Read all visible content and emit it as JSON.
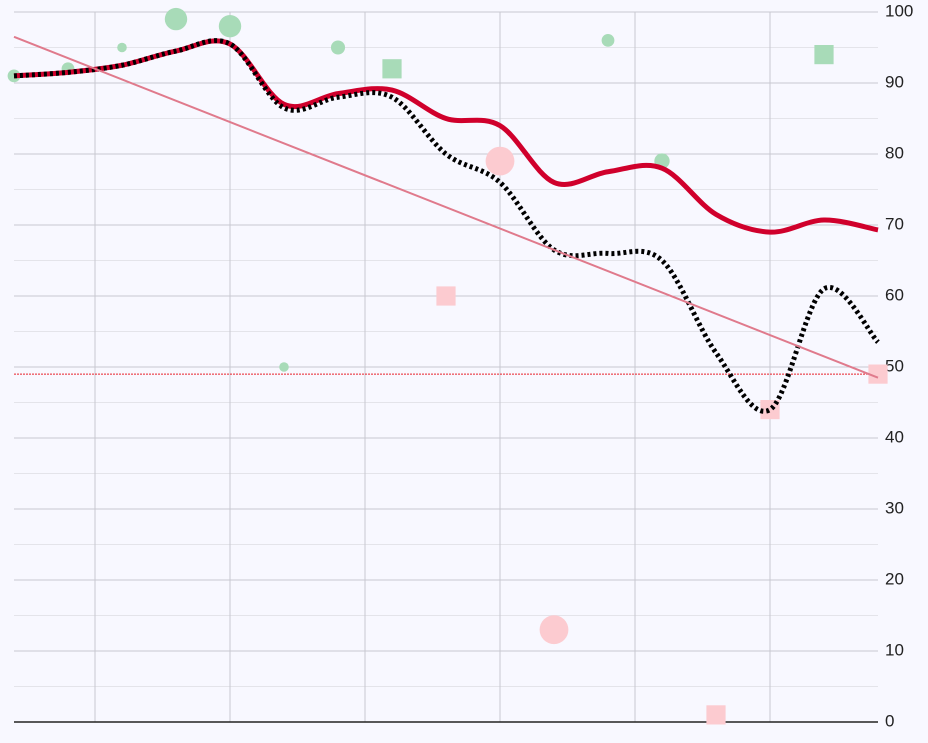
{
  "chart_data": {
    "type": "line",
    "x": [
      0,
      1,
      2,
      3,
      4,
      5,
      6,
      7,
      8,
      9,
      10,
      11,
      12,
      13,
      14,
      15,
      16
    ],
    "xlim": [
      0,
      16
    ],
    "xticks": [
      1.5,
      4,
      6.5,
      9,
      11.5,
      14
    ],
    "ylim": [
      0,
      100
    ],
    "yticks": [
      0,
      10,
      20,
      30,
      40,
      50,
      60,
      70,
      80,
      90,
      100
    ],
    "grid": true,
    "series": [
      {
        "color": "#d0002c",
        "style": "solid",
        "smooth": true,
        "values": [
          91,
          91.5,
          92.5,
          94.5,
          95.5,
          87,
          88.5,
          89,
          85,
          84,
          76,
          77.5,
          78,
          71.5,
          69,
          70.7,
          69.3
        ]
      },
      {
        "color": "#000000",
        "style": "dotted",
        "smooth": true,
        "values": [
          91,
          91.5,
          92.5,
          94.5,
          95.5,
          86.5,
          88,
          88,
          80,
          76,
          66.5,
          66,
          65,
          52,
          44,
          61,
          53.5
        ]
      },
      {
        "color": "#e07a8c",
        "style": "thin",
        "smooth": false,
        "x": [
          0,
          16
        ],
        "values": [
          96.5,
          48.5
        ]
      }
    ],
    "reference_line": {
      "value": 49,
      "color": "#e8202a"
    },
    "scatter": [
      {
        "marker": "circle",
        "color": "#a8dbb8",
        "x": [
          0,
          1,
          2,
          3,
          4,
          5,
          6,
          11,
          12
        ],
        "y": [
          91,
          92,
          95,
          99,
          98,
          50,
          95,
          96,
          79
        ],
        "size": [
          2,
          2,
          1.5,
          3.5,
          3.5,
          1.5,
          2.2,
          2,
          2.4
        ]
      },
      {
        "marker": "square",
        "color": "#a8dbb8",
        "x": [
          7,
          15
        ],
        "y": [
          92,
          94
        ],
        "size": [
          3,
          3
        ]
      },
      {
        "marker": "circle",
        "color": "#fccbd0",
        "x": [
          9,
          10
        ],
        "y": [
          79,
          13
        ],
        "size": [
          4.5,
          4.5
        ]
      },
      {
        "marker": "square",
        "color": "#fccbd0",
        "x": [
          8,
          13,
          14,
          16
        ],
        "y": [
          60,
          1,
          44,
          49
        ],
        "size": [
          3,
          3,
          3,
          3
        ]
      }
    ]
  }
}
